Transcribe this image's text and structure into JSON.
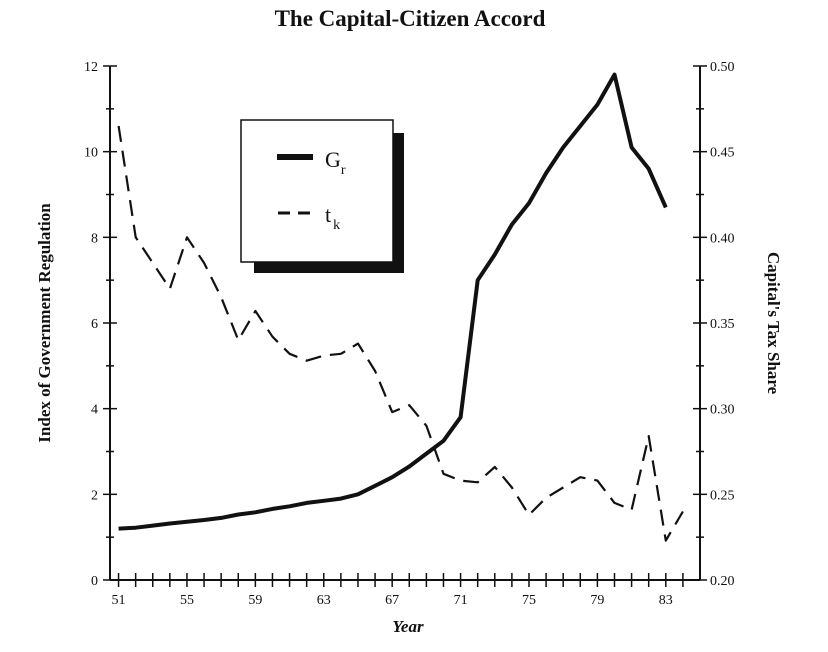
{
  "chart_data": {
    "type": "line",
    "title": "The Capital-Citizen Accord",
    "xlabel": "Year",
    "ylabel_left": "Index of Government Regulation",
    "ylabel_right": "Capital's Tax Share",
    "xlim": [
      50.5,
      85
    ],
    "ylim_left": [
      0,
      12
    ],
    "ylim_right": [
      0.2,
      0.5
    ],
    "x_tick_labels": [
      "51",
      "55",
      "59",
      "63",
      "67",
      "71",
      "75",
      "79",
      "83"
    ],
    "x_tick_values": [
      51,
      55,
      59,
      63,
      67,
      71,
      75,
      79,
      83
    ],
    "y_left_ticks": [
      "0",
      "2",
      "4",
      "6",
      "8",
      "10",
      "12"
    ],
    "y_left_tick_values": [
      0,
      2,
      4,
      6,
      8,
      10,
      12
    ],
    "y_right_ticks": [
      "0.20",
      "0.25",
      "0.30",
      "0.35",
      "0.40",
      "0.45",
      "0.50"
    ],
    "y_right_tick_values": [
      0.2,
      0.25,
      0.3,
      0.35,
      0.4,
      0.45,
      0.5
    ],
    "grid": false,
    "legend_position": "top-left",
    "series": [
      {
        "name": "G",
        "name_sub": "r",
        "axis": "left",
        "style": "solid",
        "color": "#111111",
        "x": [
          51,
          52,
          53,
          54,
          55,
          56,
          57,
          58,
          59,
          60,
          61,
          62,
          63,
          64,
          65,
          66,
          67,
          68,
          69,
          70,
          71,
          72,
          73,
          74,
          75,
          76,
          77,
          78,
          79,
          80,
          81,
          82,
          83
        ],
        "values": [
          1.2,
          1.22,
          1.27,
          1.32,
          1.36,
          1.4,
          1.45,
          1.53,
          1.58,
          1.66,
          1.72,
          1.8,
          1.85,
          1.9,
          2.0,
          2.2,
          2.4,
          2.65,
          2.95,
          3.25,
          3.8,
          7.0,
          7.6,
          8.3,
          8.8,
          9.5,
          10.1,
          10.6,
          11.1,
          11.8,
          10.1,
          9.6,
          8.7
        ]
      },
      {
        "name": "t",
        "name_sub": "k",
        "axis": "right",
        "style": "dashed",
        "color": "#111111",
        "x": [
          51,
          52,
          53,
          54,
          55,
          56,
          57,
          58,
          59,
          60,
          61,
          62,
          63,
          64,
          65,
          66,
          67,
          68,
          69,
          70,
          71,
          72,
          73,
          74,
          75,
          76,
          77,
          78,
          79,
          80,
          81,
          82,
          83,
          84
        ],
        "values": [
          0.465,
          0.4,
          0.385,
          0.37,
          0.4,
          0.385,
          0.365,
          0.34,
          0.357,
          0.342,
          0.332,
          0.328,
          0.331,
          0.332,
          0.338,
          0.322,
          0.298,
          0.302,
          0.29,
          0.262,
          0.258,
          0.257,
          0.266,
          0.254,
          0.238,
          0.248,
          0.254,
          0.26,
          0.258,
          0.245,
          0.241,
          0.284,
          0.223,
          0.24
        ]
      }
    ]
  }
}
